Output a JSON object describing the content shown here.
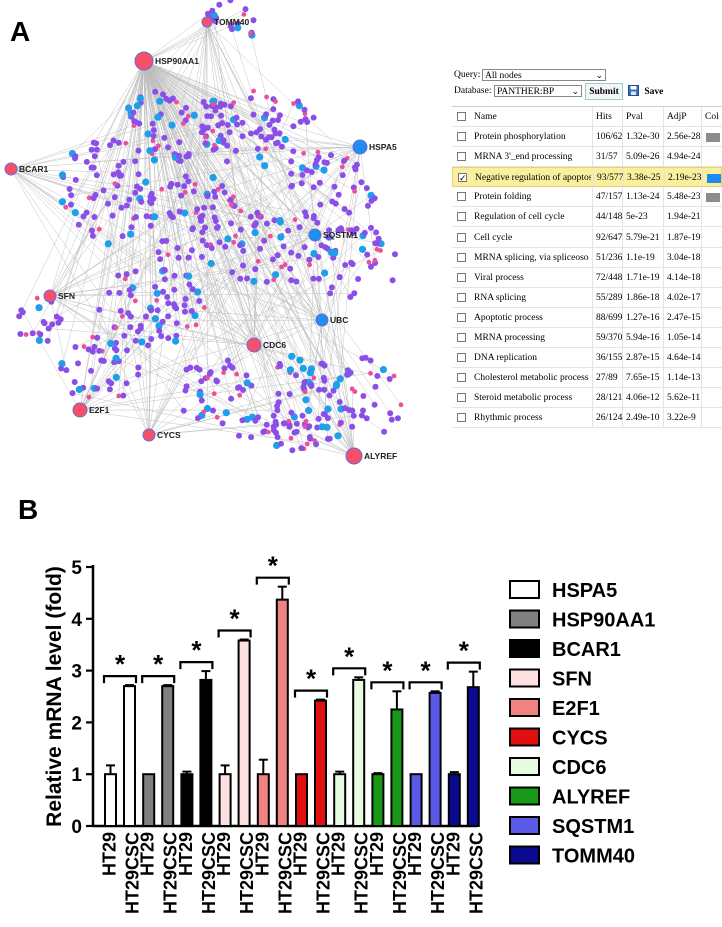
{
  "panels": {
    "a_label": "A",
    "b_label": "B"
  },
  "network": {
    "hubs": [
      {
        "name": "TOMM40",
        "color": "#f4506a"
      },
      {
        "name": "HSP90AA1",
        "color": "#f4506a"
      },
      {
        "name": "HSPA5",
        "color": "#1e8ff0"
      },
      {
        "name": "BCAR1",
        "color": "#f4506a"
      },
      {
        "name": "SQSTM1",
        "color": "#1e8ff0"
      },
      {
        "name": "SFN",
        "color": "#f4506a"
      },
      {
        "name": "UBC",
        "color": "#1e8ff0"
      },
      {
        "name": "CDC6",
        "color": "#f4506a"
      },
      {
        "name": "E2F1",
        "color": "#f4506a"
      },
      {
        "name": "CYCS",
        "color": "#f4506a"
      },
      {
        "name": "ALYREF",
        "color": "#f4506a"
      }
    ],
    "node_colors": {
      "purple": "#8a4fe8",
      "pink": "#ee4f9a",
      "blue": "#1e9fea",
      "edge": "#bdbdbd"
    }
  },
  "enrichment": {
    "query_label": "Query:",
    "query_value": "All nodes",
    "database_label": "Database:",
    "database_value": "PANTHER:BP",
    "submit_label": "Submit",
    "save_label": "Save",
    "columns": [
      "Name",
      "Hits",
      "Pval",
      "AdjP",
      "Col"
    ],
    "rows": [
      {
        "name": "Protein phosphorylation",
        "hits": "106/62",
        "pval": "1.32e-30",
        "adjp": "2.56e-28",
        "color": "#8c8c8c",
        "checked": false,
        "highlight": false
      },
      {
        "name": "MRNA 3'_end processing",
        "hits": "31/57",
        "pval": "5.09e-26",
        "adjp": "4.94e-24",
        "color": "",
        "checked": false,
        "highlight": false
      },
      {
        "name": "Negative regulation of apoptos",
        "hits": "93/577",
        "pval": "3.38e-25",
        "adjp": "2.19e-23",
        "color": "#1a8cf0",
        "checked": true,
        "highlight": true
      },
      {
        "name": "Protein folding",
        "hits": "47/157",
        "pval": "1.13e-24",
        "adjp": "5.48e-23",
        "color": "#8c8c8c",
        "checked": false,
        "highlight": false
      },
      {
        "name": "Regulation of cell cycle",
        "hits": "44/148",
        "pval": "5e-23",
        "adjp": "1.94e-21",
        "color": "",
        "checked": false,
        "highlight": false
      },
      {
        "name": "Cell cycle",
        "hits": "92/647",
        "pval": "5.79e-21",
        "adjp": "1.87e-19",
        "color": "",
        "checked": false,
        "highlight": false
      },
      {
        "name": "MRNA splicing, via spliceoso",
        "hits": "51/236",
        "pval": "1.1e-19",
        "adjp": "3.04e-18",
        "color": "",
        "checked": false,
        "highlight": false
      },
      {
        "name": "Viral process",
        "hits": "72/448",
        "pval": "1.71e-19",
        "adjp": "4.14e-18",
        "color": "",
        "checked": false,
        "highlight": false
      },
      {
        "name": "RNA splicing",
        "hits": "55/289",
        "pval": "1.86e-18",
        "adjp": "4.02e-17",
        "color": "",
        "checked": false,
        "highlight": false
      },
      {
        "name": "Apoptotic process",
        "hits": "88/699",
        "pval": "1.27e-16",
        "adjp": "2.47e-15",
        "color": "",
        "checked": false,
        "highlight": false
      },
      {
        "name": "MRNA processing",
        "hits": "59/370",
        "pval": "5.94e-16",
        "adjp": "1.05e-14",
        "color": "",
        "checked": false,
        "highlight": false
      },
      {
        "name": "DNA replication",
        "hits": "36/155",
        "pval": "2.87e-15",
        "adjp": "4.64e-14",
        "color": "",
        "checked": false,
        "highlight": false
      },
      {
        "name": "Cholesterol metabolic process",
        "hits": "27/89",
        "pval": "7.65e-15",
        "adjp": "1.14e-13",
        "color": "",
        "checked": false,
        "highlight": false
      },
      {
        "name": "Steroid metabolic process",
        "hits": "28/121",
        "pval": "4.06e-12",
        "adjp": "5.62e-11",
        "color": "",
        "checked": false,
        "highlight": false
      },
      {
        "name": "Rhythmic process",
        "hits": "26/124",
        "pval": "2.49e-10",
        "adjp": "3.22e-9",
        "color": "",
        "checked": false,
        "highlight": false
      }
    ]
  },
  "chart_data": {
    "type": "bar",
    "ylabel": "Relative mRNA level (fold)",
    "ylim": [
      0,
      5
    ],
    "yticks": [
      "0",
      "1",
      "2",
      "3",
      "4",
      "5"
    ],
    "xlabels": [
      "HT29",
      "HT29CSC"
    ],
    "significance": "*",
    "series": [
      {
        "name": "HSPA5",
        "color": "#ffffff",
        "values": [
          1.0,
          2.7
        ],
        "errors": [
          0.17,
          0.02
        ]
      },
      {
        "name": "HSP90AA1",
        "color": "#808080",
        "values": [
          1.0,
          2.7
        ],
        "errors": [
          0.0,
          0.02
        ]
      },
      {
        "name": "BCAR1",
        "color": "#000000",
        "values": [
          1.0,
          2.82
        ],
        "errors": [
          0.05,
          0.17
        ]
      },
      {
        "name": "SFN",
        "color": "#fde0e0",
        "values": [
          1.0,
          3.58
        ],
        "errors": [
          0.17,
          0.02
        ]
      },
      {
        "name": "E2F1",
        "color": "#f08282",
        "values": [
          1.0,
          4.37
        ],
        "errors": [
          0.28,
          0.25
        ]
      },
      {
        "name": "CYCS",
        "color": "#e01010",
        "values": [
          1.0,
          2.42
        ],
        "errors": [
          0.0,
          0.02
        ]
      },
      {
        "name": "CDC6",
        "color": "#e6fbe0",
        "values": [
          1.0,
          2.82
        ],
        "errors": [
          0.05,
          0.05
        ]
      },
      {
        "name": "ALYREF",
        "color": "#189a18",
        "values": [
          1.0,
          2.25
        ],
        "errors": [
          0.02,
          0.35
        ]
      },
      {
        "name": "SQSTM1",
        "color": "#5a5ae6",
        "values": [
          1.0,
          2.57
        ],
        "errors": [
          0.0,
          0.03
        ]
      },
      {
        "name": "TOMM40",
        "color": "#0a0a90",
        "values": [
          1.0,
          2.68
        ],
        "errors": [
          0.04,
          0.3
        ]
      }
    ]
  }
}
